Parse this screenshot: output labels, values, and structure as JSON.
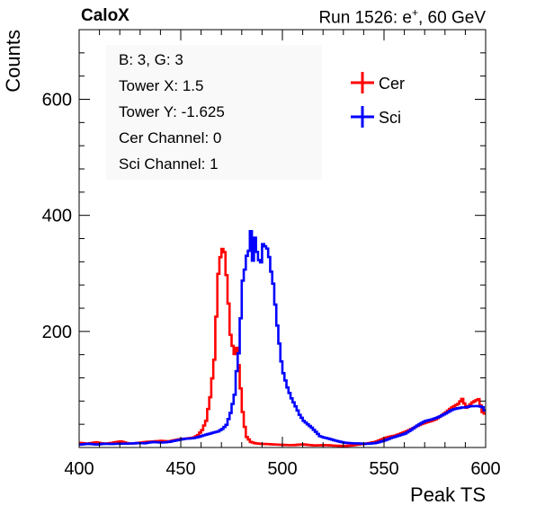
{
  "header": {
    "brand": "CaloX",
    "run_info_prefix": "Run 1526: e",
    "run_info_sup": "+",
    "run_info_suffix": ", 60 GeV"
  },
  "info_box": [
    "B: 3, G: 3",
    "Tower X: 1.5",
    "Tower Y: -1.625",
    "Cer Channel: 0",
    "Sci Channel: 1"
  ],
  "colors": {
    "cer": "#ff0000",
    "sci": "#0000ff",
    "frame": "#000000"
  },
  "chart_data": {
    "type": "line",
    "style": "step-histogram",
    "xlabel": "Peak TS",
    "ylabel": "Counts",
    "xlim": [
      400,
      600
    ],
    "ylim": [
      0,
      720
    ],
    "xticks": [
      400,
      450,
      500,
      550,
      600
    ],
    "yticks": [
      200,
      400,
      600
    ],
    "legend_position": "top-right",
    "bin_width": 1,
    "series": [
      {
        "name": "Cer",
        "color": "#ff0000",
        "x": [
          400,
          404,
          408,
          412,
          416,
          420,
          424,
          428,
          432,
          436,
          440,
          444,
          448,
          452,
          456,
          458,
          460,
          462,
          464,
          466,
          467,
          468,
          469,
          470,
          471,
          472,
          473,
          474,
          475,
          476,
          477,
          478,
          479,
          480,
          481,
          482,
          484,
          486,
          488,
          490,
          495,
          500,
          505,
          510,
          515,
          520,
          525,
          530,
          535,
          540,
          545,
          550,
          555,
          560,
          565,
          570,
          575,
          580,
          584,
          586,
          588,
          590,
          593,
          596,
          598,
          600
        ],
        "values": [
          8,
          6,
          9,
          7,
          8,
          10,
          7,
          8,
          9,
          10,
          12,
          11,
          13,
          15,
          18,
          22,
          30,
          45,
          85,
          150,
          225,
          300,
          330,
          345,
          340,
          300,
          250,
          195,
          175,
          160,
          170,
          140,
          100,
          60,
          35,
          18,
          10,
          8,
          7,
          6,
          5,
          5,
          4,
          5,
          4,
          4,
          3,
          3,
          4,
          6,
          10,
          16,
          20,
          28,
          35,
          42,
          50,
          60,
          70,
          75,
          85,
          70,
          78,
          82,
          60,
          55
        ]
      },
      {
        "name": "Sci",
        "color": "#0000ff",
        "x": [
          400,
          404,
          408,
          412,
          416,
          420,
          424,
          428,
          432,
          436,
          440,
          444,
          448,
          452,
          456,
          460,
          464,
          468,
          470,
          472,
          474,
          476,
          477,
          478,
          479,
          480,
          481,
          482,
          483,
          484,
          485,
          486,
          487,
          488,
          489,
          490,
          491,
          492,
          493,
          494,
          495,
          496,
          497,
          498,
          499,
          500,
          502,
          504,
          506,
          508,
          510,
          512,
          514,
          516,
          518,
          520,
          525,
          530,
          535,
          540,
          545,
          550,
          555,
          560,
          565,
          570,
          575,
          580,
          584,
          588,
          592,
          596,
          598,
          600
        ],
        "values": [
          5,
          6,
          5,
          7,
          6,
          6,
          7,
          8,
          7,
          9,
          9,
          10,
          12,
          15,
          17,
          20,
          23,
          28,
          33,
          40,
          60,
          90,
          130,
          160,
          220,
          285,
          305,
          330,
          340,
          375,
          325,
          365,
          340,
          325,
          320,
          350,
          345,
          340,
          325,
          300,
          280,
          245,
          210,
          180,
          150,
          130,
          105,
          85,
          70,
          55,
          45,
          40,
          35,
          28,
          20,
          17,
          12,
          9,
          7,
          6,
          8,
          12,
          18,
          25,
          35,
          45,
          52,
          58,
          65,
          70,
          72,
          70,
          68,
          58
        ]
      }
    ]
  }
}
